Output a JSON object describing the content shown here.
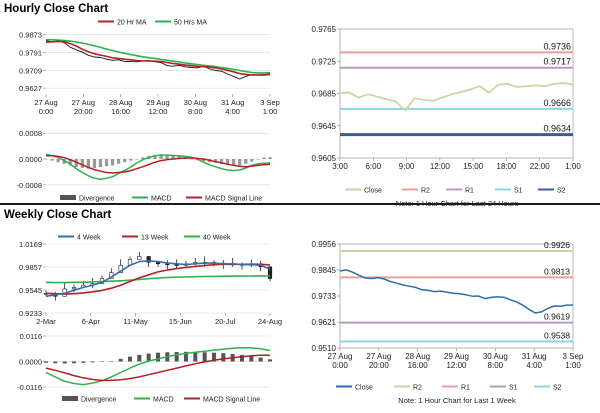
{
  "sections": {
    "hourly_title": "Hourly Close Chart",
    "weekly_title": "Weekly Close Chart"
  },
  "chart_data": [
    {
      "id": "hourly_price",
      "type": "line",
      "legend": [
        "20 Hr MA",
        "50 Hrs MA"
      ],
      "y_ticks": [
        "0.9873",
        "0.9791",
        "0.9709",
        "0.9627"
      ],
      "ylim": [
        0.96,
        0.9885
      ],
      "x_ticks": [
        "27 Aug\n0:00",
        "27 Aug\n20:00",
        "28 Aug\n16:00",
        "29 Aug\n12:00",
        "30 Aug\n8:00",
        "31 Aug\n4:00",
        "3 Sep\n1:00"
      ],
      "series": [
        {
          "name": "Close",
          "color": "#000000",
          "values": [
            0.9845,
            0.984,
            0.9845,
            0.9836,
            0.9815,
            0.9803,
            0.9792,
            0.9778,
            0.977,
            0.9768,
            0.976,
            0.9755,
            0.9757,
            0.975,
            0.9749,
            0.9748,
            0.9752,
            0.9753,
            0.9748,
            0.9745,
            0.973,
            0.9728,
            0.9732,
            0.9725,
            0.9722,
            0.972,
            0.9728,
            0.9716,
            0.9708,
            0.9705,
            0.9692,
            0.968,
            0.9669,
            0.9681,
            0.9689,
            0.9688,
            0.969,
            0.9692
          ]
        },
        {
          "name": "20 Hr MA",
          "color": "#b52025",
          "values": [
            0.9838,
            0.984,
            0.9842,
            0.984,
            0.9832,
            0.982,
            0.9806,
            0.9794,
            0.9785,
            0.9779,
            0.9773,
            0.9766,
            0.9763,
            0.976,
            0.9757,
            0.9754,
            0.9752,
            0.9752,
            0.9751,
            0.9749,
            0.9745,
            0.974,
            0.9737,
            0.9733,
            0.973,
            0.9727,
            0.9726,
            0.9724,
            0.972,
            0.9715,
            0.9709,
            0.9702,
            0.9694,
            0.969,
            0.9688,
            0.9687,
            0.9688,
            0.969
          ]
        },
        {
          "name": "50 Hrs MA",
          "color": "#2db34a",
          "values": [
            0.985,
            0.9849,
            0.9848,
            0.9846,
            0.9843,
            0.9839,
            0.9834,
            0.9828,
            0.9821,
            0.9814,
            0.9807,
            0.98,
            0.9793,
            0.9787,
            0.9781,
            0.9776,
            0.9771,
            0.9767,
            0.9763,
            0.9759,
            0.9755,
            0.9751,
            0.9747,
            0.9743,
            0.9739,
            0.9735,
            0.9732,
            0.9729,
            0.9726,
            0.9722,
            0.9718,
            0.9713,
            0.9708,
            0.9703,
            0.9699,
            0.9697,
            0.9697,
            0.9698
          ]
        }
      ]
    },
    {
      "id": "hourly_macd",
      "type": "bar",
      "legend": [
        "Divergence",
        "MACD",
        "MACD Signal Line"
      ],
      "y_ticks": [
        "0.0008",
        "0.0000",
        "-0.0008"
      ],
      "ylim": [
        -0.0009,
        0.0009
      ],
      "series": [
        {
          "name": "Divergence",
          "color": "#909090",
          "values": [
            0.0,
            -5e-05,
            -0.0001,
            -0.00015,
            -0.0002,
            -0.00025,
            -0.00028,
            -0.0003,
            -0.00028,
            -0.00025,
            -0.00022,
            -0.0002,
            -0.00015,
            -0.0001,
            -5e-05,
            0.0,
            5e-05,
            0.0001,
            0.00012,
            0.00015,
            0.00012,
            0.0001,
            8e-05,
            5e-05,
            0.0,
            -4e-05,
            -8e-05,
            -0.0001,
            -0.00012,
            -0.00015,
            -0.00018,
            -0.0002,
            -0.0002,
            -0.00015,
            -8e-05,
            0.0,
            4e-05,
            6e-05
          ]
        },
        {
          "name": "MACD",
          "color": "#2db34a",
          "values": [
            0.00015,
            0.0001,
            5e-05,
            -5e-05,
            -0.00015,
            -0.0003,
            -0.00042,
            -0.00052,
            -0.0006,
            -0.00063,
            -0.0006,
            -0.00055,
            -0.00045,
            -0.00035,
            -0.00025,
            -0.00012,
            -2e-05,
            5e-05,
            0.0001,
            0.00012,
            0.00012,
            0.00011,
            0.0001,
            8e-05,
            5e-05,
            0.0,
            -0.0001,
            -0.00018,
            -0.00024,
            -0.0003,
            -0.00034,
            -0.00036,
            -0.00034,
            -0.00028,
            -0.0002,
            -0.00015,
            -0.00013,
            -0.00012
          ]
        },
        {
          "name": "MACD Signal Line",
          "color": "#b52025",
          "values": [
            0.0001,
            0.0001,
            8e-05,
            4e-05,
            -2e-05,
            -0.0001,
            -0.00018,
            -0.00026,
            -0.00033,
            -0.00038,
            -0.00042,
            -0.00043,
            -0.00042,
            -0.0004,
            -0.00036,
            -0.0003,
            -0.00024,
            -0.00017,
            -0.0001,
            -5e-05,
            -2e-05,
            0.0,
            2e-05,
            3e-05,
            3e-05,
            2e-05,
            0.0,
            -4e-05,
            -8e-05,
            -0.00012,
            -0.00016,
            -0.0002,
            -0.00023,
            -0.00024,
            -0.00022,
            -0.0002,
            -0.00018,
            -0.00016
          ]
        }
      ]
    },
    {
      "id": "hourly_sr",
      "type": "line",
      "y_ticks": [
        "0.9765",
        "0.9725",
        "0.9685",
        "0.9645",
        "0.9605"
      ],
      "ylim": [
        0.9605,
        0.9765
      ],
      "x_ticks": [
        "3:00",
        "6:00",
        "9:00",
        "12:00",
        "15:00",
        "18:00",
        "22:00",
        "1:00"
      ],
      "levels": [
        {
          "name": "R2",
          "value": 0.9736,
          "label": "0.9736",
          "color": "#e8a09a"
        },
        {
          "name": "R1",
          "value": 0.9717,
          "label": "0.9717",
          "color": "#b89abf"
        },
        {
          "name": "S1",
          "value": 0.9666,
          "label": "0.9666",
          "color": "#8fd3e6"
        },
        {
          "name": "S2",
          "value": 0.9634,
          "label": "0.9634",
          "color": "#365f9a"
        }
      ],
      "series": [
        {
          "name": "Close",
          "color": "#c5d9a0",
          "values": [
            0.9686,
            0.9686,
            0.968,
            0.9684,
            0.9681,
            0.9678,
            0.9675,
            0.9664,
            0.9679,
            0.9677,
            0.9676,
            0.968,
            0.9684,
            0.9687,
            0.969,
            0.9694,
            0.9686,
            0.9696,
            0.9697,
            0.9693,
            0.9694,
            0.9695,
            0.9694,
            0.9697,
            0.9698,
            0.9696
          ]
        }
      ],
      "legend": [
        "Close",
        "R2",
        "R1",
        "S1",
        "S2"
      ],
      "note": "Note: 1 Hour Chart for Last 24 Hours"
    },
    {
      "id": "weekly_price",
      "type": "line",
      "legend": [
        "4 Week",
        "13 Week",
        "40 Week"
      ],
      "y_ticks": [
        "1.0169",
        "0.9857",
        "0.9545",
        "0.9233"
      ],
      "ylim": [
        0.9233,
        1.0169
      ],
      "x_ticks": [
        "2-Mar",
        "6-Apr",
        "11-May",
        "15-Jun",
        "20-Jul",
        "24-Aug"
      ],
      "series": [
        {
          "name": "Close",
          "color": "#222222",
          "values": [
            0.95,
            0.946,
            0.956,
            0.958,
            0.961,
            0.963,
            0.97,
            0.978,
            0.988,
            0.996,
            1.0,
            0.992,
            0.99,
            0.989,
            0.988,
            0.99,
            0.992,
            0.992,
            0.991,
            0.989,
            0.99,
            0.988,
            0.99,
            0.986,
            0.97
          ]
        },
        {
          "name": "4 Week",
          "color": "#3a6db0",
          "values": [
            0.946,
            0.948,
            0.95,
            0.954,
            0.958,
            0.961,
            0.965,
            0.972,
            0.98,
            0.988,
            0.993,
            0.994,
            0.993,
            0.991,
            0.99,
            0.989,
            0.99,
            0.991,
            0.991,
            0.99,
            0.99,
            0.989,
            0.989,
            0.988,
            0.983
          ]
        },
        {
          "name": "13 Week",
          "color": "#b52025",
          "values": [
            0.95,
            0.9495,
            0.949,
            0.9495,
            0.9505,
            0.952,
            0.954,
            0.957,
            0.961,
            0.966,
            0.971,
            0.975,
            0.979,
            0.9815,
            0.9835,
            0.985,
            0.9865,
            0.9878,
            0.9888,
            0.9893,
            0.9893,
            0.9893,
            0.9895,
            0.9893,
            0.9885
          ]
        },
        {
          "name": "40 Week",
          "color": "#2db34a",
          "values": [
            0.965,
            0.9645,
            0.9645,
            0.965,
            0.965,
            0.9655,
            0.966,
            0.9665,
            0.967,
            0.9678,
            0.9688,
            0.9698,
            0.9708,
            0.9715,
            0.972,
            0.9722,
            0.9725,
            0.9728,
            0.973,
            0.9732,
            0.9733,
            0.9734,
            0.9735,
            0.9736,
            0.9735
          ]
        }
      ]
    },
    {
      "id": "weekly_macd",
      "type": "bar",
      "legend": [
        "Divergence",
        "MACD",
        "MACD Signal Line"
      ],
      "y_ticks": [
        "0.0116",
        "0.0000",
        "-0.0116"
      ],
      "ylim": [
        -0.0116,
        0.0116
      ],
      "series": [
        {
          "name": "Divergence",
          "color": "#5a5a5a",
          "values": [
            -0.0006,
            -0.0008,
            -0.0009,
            -0.0008,
            -0.0006,
            -0.0004,
            -0.0002,
            0.0,
            0.0012,
            0.0022,
            0.003,
            0.0036,
            0.004,
            0.0042,
            0.0043,
            0.0044,
            0.0043,
            0.0042,
            0.004,
            0.0038,
            0.0034,
            0.003,
            0.0025,
            0.0018,
            0.001
          ]
        },
        {
          "name": "MACD",
          "color": "#2db34a",
          "values": [
            -0.005,
            -0.007,
            -0.009,
            -0.01,
            -0.0105,
            -0.0098,
            -0.0088,
            -0.007,
            -0.005,
            -0.003,
            -0.0012,
            0.0002,
            0.0012,
            0.0022,
            0.003,
            0.0037,
            0.0042,
            0.0047,
            0.0052,
            0.0056,
            0.006,
            0.0063,
            0.0062,
            0.0058,
            0.005
          ]
        },
        {
          "name": "MACD Signal Line",
          "color": "#b52025",
          "values": [
            -0.003,
            -0.004,
            -0.0052,
            -0.0064,
            -0.0074,
            -0.0082,
            -0.0086,
            -0.0086,
            -0.0083,
            -0.0078,
            -0.007,
            -0.006,
            -0.005,
            -0.004,
            -0.003,
            -0.002,
            -0.001,
            -0.0002,
            0.0006,
            0.0012,
            0.0017,
            0.0022,
            0.0026,
            0.0028,
            0.0028
          ]
        }
      ]
    },
    {
      "id": "weekly_sr",
      "type": "line",
      "y_ticks": [
        "0.9956",
        "0.9845",
        "0.9733",
        "0.9621",
        "0.9510"
      ],
      "ylim": [
        0.951,
        0.9956
      ],
      "x_ticks": [
        "27 Aug\n0:00",
        "27 Aug\n20:00",
        "28 Aug\n16:00",
        "29 Aug\n12:00",
        "30 Aug\n8:00",
        "31 Aug\n4:00",
        "3 Sep\n1:00"
      ],
      "levels": [
        {
          "name": "R2",
          "value": 0.9926,
          "label": "0.9926",
          "color": "#c5d9a0"
        },
        {
          "name": "R1",
          "value": 0.9813,
          "label": "0.9813",
          "color": "#e8a09a"
        },
        {
          "name": "S1",
          "value": 0.9619,
          "label": "0.9619",
          "color": "#b89abf"
        },
        {
          "name": "S2",
          "value": 0.9538,
          "label": "0.9538",
          "color": "#8fd3e6"
        }
      ],
      "series": [
        {
          "name": "Close",
          "color": "#2a6fa8",
          "values": [
            0.984,
            0.9845,
            0.9835,
            0.9822,
            0.981,
            0.9808,
            0.9812,
            0.9806,
            0.9795,
            0.9788,
            0.978,
            0.9775,
            0.977,
            0.976,
            0.9757,
            0.9752,
            0.9754,
            0.9749,
            0.9745,
            0.9743,
            0.9738,
            0.9732,
            0.9733,
            0.9722,
            0.9727,
            0.9729,
            0.9728,
            0.9717,
            0.9708,
            0.9694,
            0.9676,
            0.966,
            0.9665,
            0.968,
            0.969,
            0.9689,
            0.9694,
            0.9694
          ]
        }
      ],
      "legend": [
        "Close",
        "R2",
        "R1",
        "S1",
        "S2"
      ],
      "note": "Note: 1 Hour Chart for Last 1 Week"
    }
  ]
}
